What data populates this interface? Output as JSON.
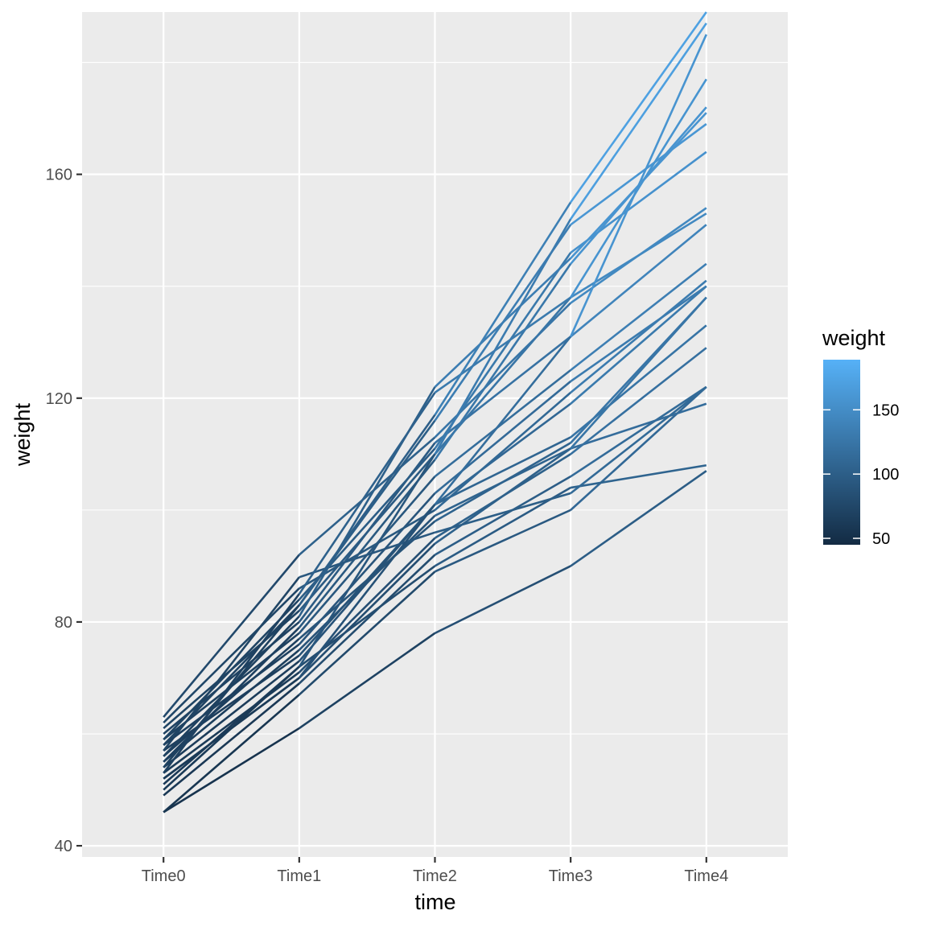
{
  "chart_data": {
    "type": "line",
    "xlabel": "time",
    "ylabel": "weight",
    "categories": [
      "Time0",
      "Time1",
      "Time2",
      "Time3",
      "Time4"
    ],
    "ylim": [
      38,
      189
    ],
    "y_ticks": [
      40,
      80,
      120,
      160
    ],
    "grid": true,
    "legend": {
      "title": "weight",
      "placement": "right",
      "type": "colorbar",
      "range": [
        45,
        189
      ],
      "ticks": [
        50,
        100,
        150
      ],
      "low_color": "#132B43",
      "high_color": "#56B1F7"
    },
    "series": [
      {
        "values": [
          46,
          61,
          78,
          90,
          107
        ]
      },
      {
        "values": [
          46,
          67,
          89,
          100,
          122
        ]
      },
      {
        "values": [
          49,
          69,
          92,
          106,
          122
        ]
      },
      {
        "values": [
          51,
          72,
          90,
          104,
          108
        ]
      },
      {
        "values": [
          52,
          70,
          94,
          111,
          119
        ]
      },
      {
        "values": [
          53,
          71,
          95,
          110,
          129
        ]
      },
      {
        "values": [
          54,
          73,
          101,
          113,
          133
        ]
      },
      {
        "values": [
          55,
          75,
          99,
          111,
          138
        ]
      },
      {
        "values": [
          56,
          77,
          98,
          112,
          138
        ]
      },
      {
        "values": [
          57,
          74,
          101,
          119,
          140
        ]
      },
      {
        "values": [
          57,
          88,
          96,
          103,
          122
        ]
      },
      {
        "values": [
          58,
          76,
          103,
          123,
          140
        ]
      },
      {
        "values": [
          59,
          78,
          106,
          125,
          144
        ]
      },
      {
        "values": [
          60,
          80,
          112,
          131,
          151
        ]
      },
      {
        "values": [
          61,
          82,
          110,
          138,
          153
        ]
      },
      {
        "values": [
          62,
          86,
          100,
          121,
          141
        ]
      },
      {
        "values": [
          63,
          92,
          113,
          137,
          154
        ]
      },
      {
        "values": [
          59,
          84,
          111,
          146,
          164
        ]
      },
      {
        "values": [
          58,
          83,
          116,
          151,
          169
        ]
      },
      {
        "values": [
          56,
          81,
          122,
          145,
          171
        ]
      },
      {
        "values": [
          55,
          79,
          109,
          144,
          172
        ]
      },
      {
        "values": [
          53,
          85,
          121,
          138,
          177
        ]
      },
      {
        "values": [
          52,
          70,
          101,
          131,
          185
        ]
      },
      {
        "values": [
          54,
          83,
          117,
          155,
          189
        ]
      },
      {
        "values": [
          50,
          72,
          110,
          152,
          187
        ]
      }
    ]
  }
}
